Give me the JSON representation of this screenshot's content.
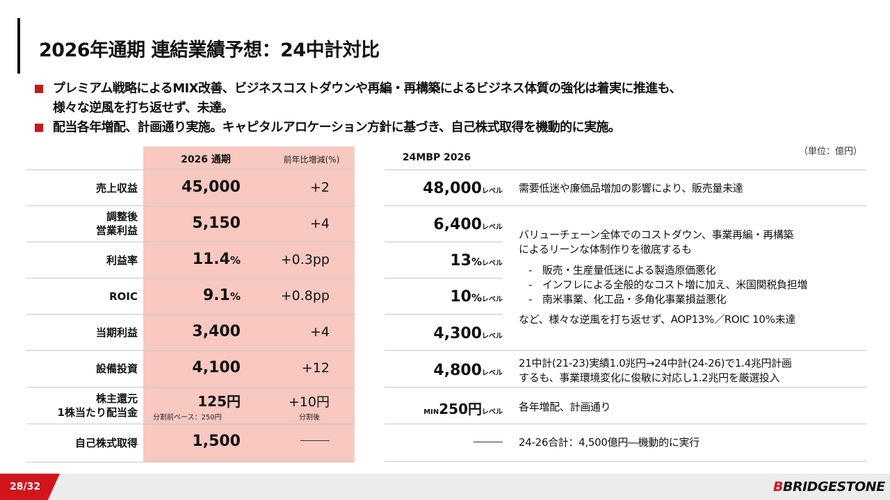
{
  "slide": {
    "title": "2026年通期 連結業績予想：24中計対比",
    "bullets": [
      "プレミアム戦略によるMIX改善、ビジネスコストダウンや再編・再構築によるビジネス体質の強化は着実に推進も、",
      "様々な逆風を打ち返せず、未達。",
      "配当各年増配、計画通り実施。キャピタルアロケーション方針に基づき、自己株式取得を機動的に実施。"
    ],
    "unit": "（単位：億円）",
    "page": "28/32",
    "logo_mark": "B",
    "logo_text": "BRIDGESTONE"
  },
  "left_table": {
    "col_2026": "2026 通期",
    "col_change": "前年比増減(%)",
    "rows": [
      {
        "label1": "売上収益",
        "label2": "",
        "value": "45,000",
        "value_suffix": "",
        "change": "+2",
        "value_note": "",
        "change_note": ""
      },
      {
        "label1": "調整後",
        "label2": "営業利益",
        "value": "5,150",
        "value_suffix": "",
        "change": "+4",
        "value_note": "",
        "change_note": ""
      },
      {
        "label1": "利益率",
        "label2": "",
        "value": "11.4",
        "value_suffix": "%",
        "change": "+0.3pp",
        "value_note": "",
        "change_note": ""
      },
      {
        "label1": "ROIC",
        "label2": "",
        "value": "9.1",
        "value_suffix": "%",
        "change": "+0.8pp",
        "value_note": "",
        "change_note": ""
      },
      {
        "label1": "当期利益",
        "label2": "",
        "value": "3,400",
        "value_suffix": "",
        "change": "+4",
        "value_note": "",
        "change_note": ""
      },
      {
        "label1": "設備投資",
        "label2": "",
        "value": "4,100",
        "value_suffix": "",
        "change": "+12",
        "value_note": "",
        "change_note": ""
      },
      {
        "label1": "株主還元",
        "label2": "1株当たり配当金",
        "value": "125円",
        "value_suffix": "",
        "change": "+10円",
        "value_note": "分割前ベース：250円",
        "change_note": "分割後"
      },
      {
        "label1": "自己株式取得",
        "label2": "",
        "value": "1,500",
        "value_suffix": "",
        "change": "",
        "value_note": "",
        "change_note": ""
      }
    ]
  },
  "right_table": {
    "header": "24MBP 2026",
    "level": "レベル",
    "min_prefix": "MIN",
    "values": [
      {
        "value": "48,000",
        "suffix": ""
      },
      {
        "value": "6,400",
        "suffix": ""
      },
      {
        "value": "13",
        "suffix": "%"
      },
      {
        "value": "10",
        "suffix": "%"
      },
      {
        "value": "4,300",
        "suffix": ""
      },
      {
        "value": "4,800",
        "suffix": ""
      },
      {
        "value": "250円",
        "suffix": ""
      }
    ],
    "desc_sales": "需要低迷や廉価品増加の影響により、販売量未達",
    "desc_profit_intro1": "バリューチェーン全体でのコストダウン、事業再編・再構築",
    "desc_profit_intro2": "によるリーンな体制作りを徹底するも",
    "desc_profit_items": [
      "-　販売・生産量低迷による製造原価悪化",
      "-　インフレによる全般的なコスト増に加え、米国関税負担増",
      "-　南米事業、化工品・多角化事業損益悪化"
    ],
    "desc_profit_outro": "など、様々な逆風を打ち返せず、AOP13%／ROIC 10%未達",
    "desc_capex1": "21中計(21-23)実績1.0兆円→24中計(24-26)で1.4兆円計画",
    "desc_capex2": "するも、事業環境変化に俊敏に対応し1.2兆円を厳選投入",
    "desc_dividend": "各年増配、計画通り",
    "desc_buyback": "24-26合計：4,500億円―機動的に実行"
  }
}
